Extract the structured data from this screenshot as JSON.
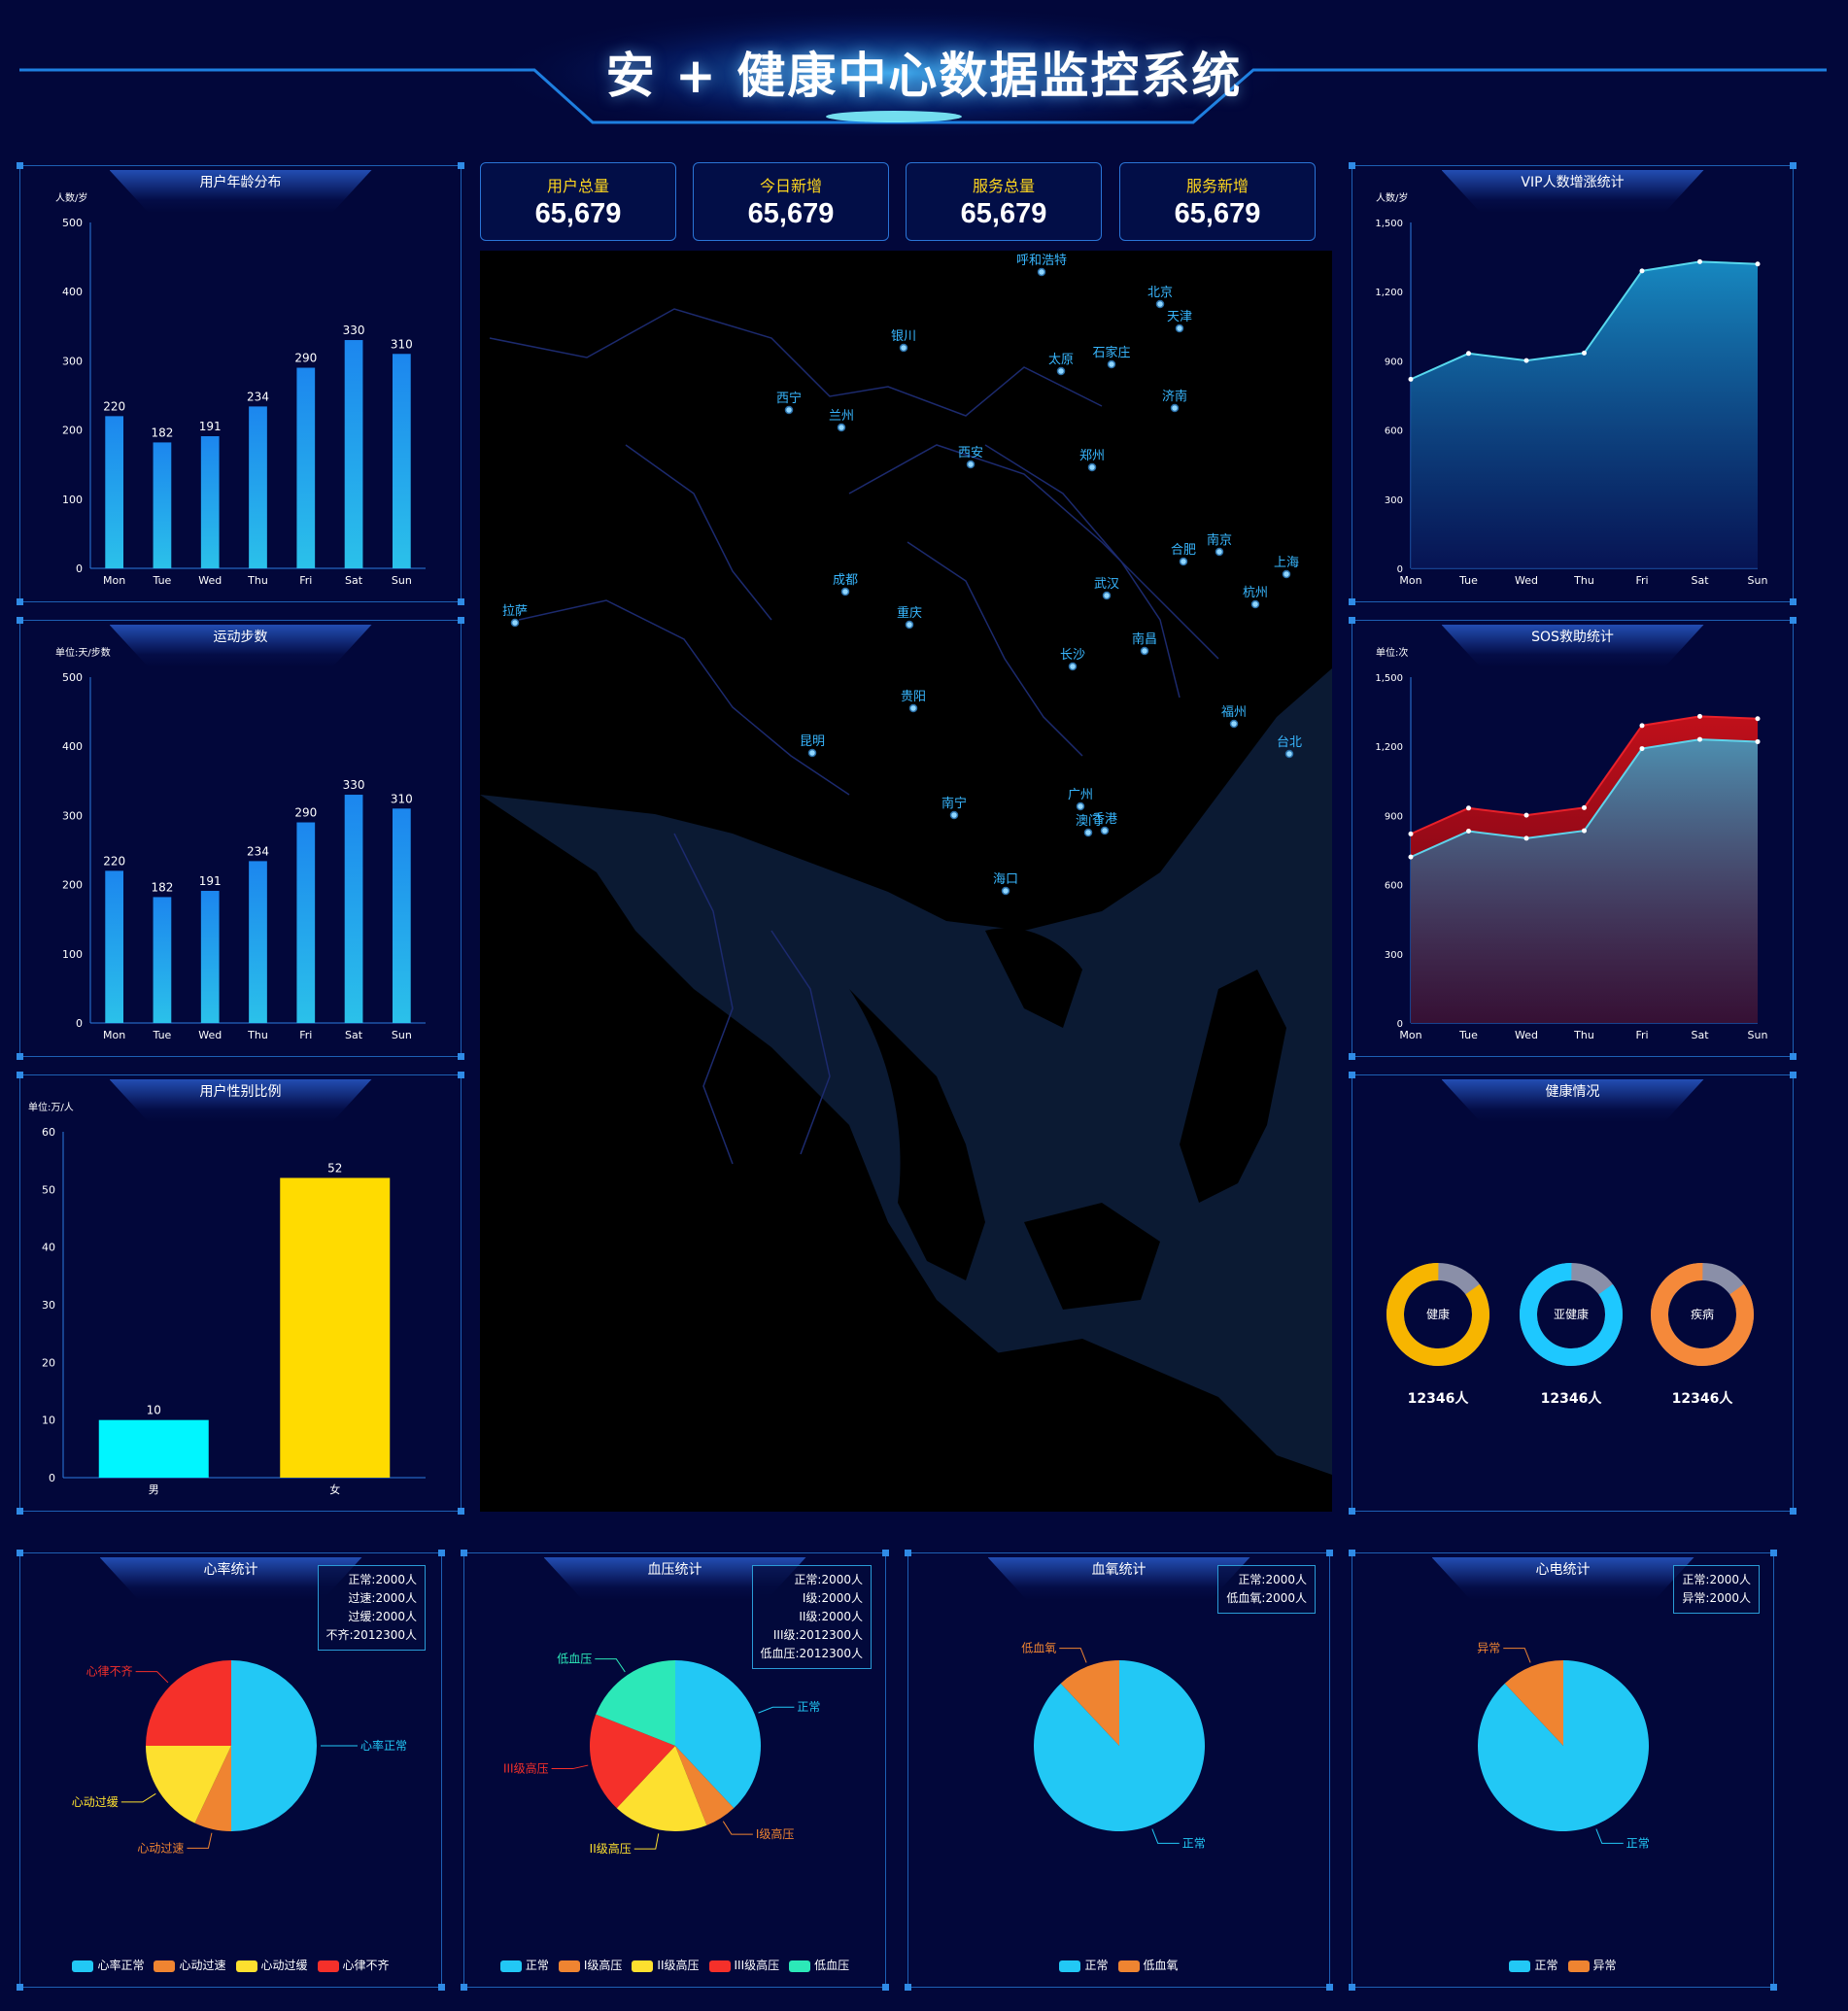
{
  "header": {
    "title": "安 + 健康中心数据监控系统"
  },
  "stats": [
    {
      "label": "用户总量",
      "value": "65,679"
    },
    {
      "label": "今日新增",
      "value": "65,679"
    },
    {
      "label": "服务总量",
      "value": "65,679"
    },
    {
      "label": "服务新增",
      "value": "65,679"
    }
  ],
  "map": {
    "cities": [
      "呼和浩特",
      "北京",
      "天津",
      "银川",
      "太原",
      "石家庄",
      "西宁",
      "兰州",
      "济南",
      "西安",
      "郑州",
      "合肥",
      "南京",
      "上海",
      "拉萨",
      "成都",
      "武汉",
      "杭州",
      "重庆",
      "南昌",
      "长沙",
      "贵阳",
      "福州",
      "昆明",
      "台北",
      "广州",
      "南宁",
      "澳门",
      "香港",
      "海口"
    ]
  },
  "health": {
    "title": "健康情况",
    "items": [
      {
        "name": "健康",
        "count": "12346人",
        "color": "#f7b500",
        "pct": 0.85
      },
      {
        "name": "亚健康",
        "count": "12346人",
        "color": "#1ec8ff",
        "pct": 0.85
      },
      {
        "name": "疾病",
        "count": "12346人",
        "color": "#f5893a",
        "pct": 0.85
      }
    ]
  },
  "chart_data": [
    {
      "id": "age",
      "type": "bar",
      "title": "用户年龄分布",
      "ylabel": "人数/岁",
      "categories": [
        "Mon",
        "Tue",
        "Wed",
        "Thu",
        "Fri",
        "Sat",
        "Sun"
      ],
      "values": [
        220,
        182,
        191,
        234,
        290,
        330,
        310
      ],
      "ylim": [
        0,
        500
      ],
      "yticks": [
        0,
        100,
        200,
        300,
        400,
        500
      ]
    },
    {
      "id": "steps",
      "type": "bar",
      "title": "运动步数",
      "ylabel": "单位:天/步数",
      "categories": [
        "Mon",
        "Tue",
        "Wed",
        "Thu",
        "Fri",
        "Sat",
        "Sun"
      ],
      "values": [
        220,
        182,
        191,
        234,
        290,
        330,
        310
      ],
      "ylim": [
        0,
        500
      ],
      "yticks": [
        0,
        100,
        200,
        300,
        400,
        500
      ]
    },
    {
      "id": "gender",
      "type": "bar",
      "title": "用户性别比例",
      "ylabel": "单位:万/人",
      "categories": [
        "男",
        "女"
      ],
      "values": [
        10,
        52
      ],
      "colors": [
        "#00f6ff",
        "#ffdb00"
      ],
      "ylim": [
        0,
        60
      ],
      "yticks": [
        0,
        10,
        20,
        30,
        40,
        50,
        60
      ]
    },
    {
      "id": "vip",
      "type": "area",
      "title": "VIP人数增涨统计",
      "ylabel": "人数/岁",
      "categories": [
        "Mon",
        "Tue",
        "Wed",
        "Thu",
        "Fri",
        "Sat",
        "Sun"
      ],
      "values": [
        820,
        932,
        901,
        934,
        1290,
        1330,
        1320
      ],
      "ylim": [
        0,
        1500
      ],
      "yticks": [
        "0",
        "300",
        "600",
        "900",
        "1,200",
        "1,500"
      ]
    },
    {
      "id": "sos",
      "type": "area",
      "title": "SOS救助统计",
      "ylabel": "单位:次",
      "categories": [
        "Mon",
        "Tue",
        "Wed",
        "Thu",
        "Fri",
        "Sat",
        "Sun"
      ],
      "series": [
        {
          "values": [
            820,
            932,
            901,
            934,
            1290,
            1330,
            1320
          ]
        },
        {
          "values": [
            720,
            832,
            801,
            834,
            1190,
            1230,
            1220
          ]
        }
      ],
      "ylim": [
        0,
        1500
      ],
      "yticks": [
        "0",
        "300",
        "600",
        "900",
        "1,200",
        "1,500"
      ]
    },
    {
      "id": "heart",
      "type": "pie",
      "title": "心率统计",
      "info": [
        "正常:2000人",
        "过速:2000人",
        "过缓:2000人",
        "不齐:2012300人"
      ],
      "slices": [
        {
          "name": "心率正常",
          "value": 50,
          "color": "#22c8f5"
        },
        {
          "name": "心动过速",
          "value": 7,
          "color": "#ef8431"
        },
        {
          "name": "心动过缓",
          "value": 18,
          "color": "#fde02f"
        },
        {
          "name": "心律不齐",
          "value": 25,
          "color": "#f5302a"
        }
      ],
      "labels": [
        "心率正常",
        "心动过速",
        "心动过缓",
        "心律不齐"
      ],
      "legend": [
        "心率正常",
        "心动过速",
        "心动过缓",
        "心律不齐"
      ]
    },
    {
      "id": "bp",
      "type": "pie",
      "title": "血压统计",
      "info": [
        "正常:2000人",
        "I级:2000人",
        "II级:2000人",
        "III级:2012300人",
        "低血压:2012300人"
      ],
      "slices": [
        {
          "name": "正常",
          "value": 38,
          "color": "#22c8f5"
        },
        {
          "name": "I级高压",
          "value": 6,
          "color": "#ef8431"
        },
        {
          "name": "II级高压",
          "value": 18,
          "color": "#fde02f"
        },
        {
          "name": "III级高压",
          "value": 19,
          "color": "#f5302a"
        },
        {
          "name": "低血压",
          "value": 19,
          "color": "#2ce8b8"
        }
      ],
      "labels": [
        "正常",
        "I级高压",
        "II级高压",
        "III级高压",
        "低血压"
      ],
      "legend": [
        "正常",
        "I级高压",
        "II级高压",
        "III级高压",
        "低血压"
      ]
    },
    {
      "id": "oxygen",
      "type": "pie",
      "title": "血氧统计",
      "info": [
        "正常:2000人",
        "低血氧:2000人"
      ],
      "slices": [
        {
          "name": "正常",
          "value": 88,
          "color": "#22c8f5"
        },
        {
          "name": "低血氧",
          "value": 12,
          "color": "#ef8431"
        }
      ],
      "labels": [
        "正常",
        "低血氧"
      ],
      "legend": [
        "正常",
        "低血氧"
      ]
    },
    {
      "id": "ecg",
      "type": "pie",
      "title": "心电统计",
      "info": [
        "正常:2000人",
        "异常:2000人"
      ],
      "slices": [
        {
          "name": "正常",
          "value": 88,
          "color": "#22c8f5"
        },
        {
          "name": "异常",
          "value": 12,
          "color": "#ef8431"
        }
      ],
      "labels": [
        "正常",
        "异常"
      ],
      "legend": [
        "正常",
        "异常"
      ]
    }
  ]
}
